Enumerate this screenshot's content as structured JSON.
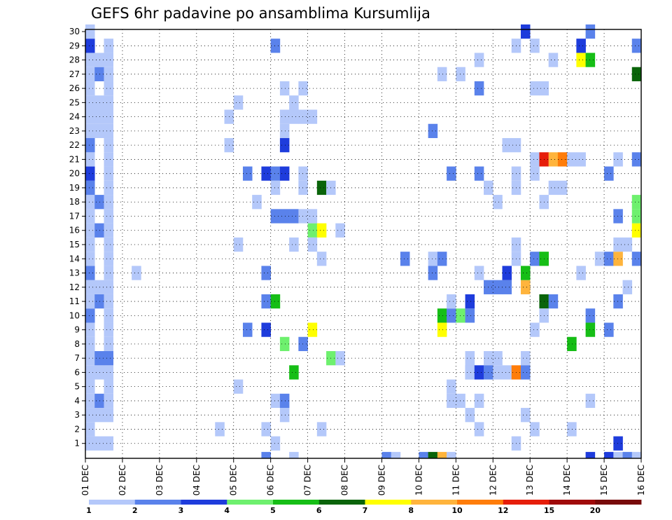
{
  "chart_data": {
    "type": "heatmap",
    "title": "GEFS 6hr padavine po ansamblima Kursumlija",
    "xlabel": "",
    "ylabel": "",
    "x_tick_labels": [
      "01 DEC",
      "02 DEC",
      "03 DEC",
      "04 DEC",
      "05 DEC",
      "06 DEC",
      "07 DEC",
      "08 DEC",
      "09 DEC",
      "10 DEC",
      "11 DEC",
      "12 DEC",
      "13 DEC",
      "14 DEC",
      "15 DEC",
      "16 DEC"
    ],
    "y_tick_labels": [
      "1",
      "2",
      "3",
      "4",
      "5",
      "6",
      "7",
      "8",
      "9",
      "10",
      "11",
      "12",
      "13",
      "14",
      "15",
      "16",
      "17",
      "18",
      "19",
      "20",
      "21",
      "22",
      "23",
      "24",
      "25",
      "26",
      "27",
      "28",
      "29",
      "30"
    ],
    "x_range": [
      0,
      60
    ],
    "y_range": [
      1,
      30
    ],
    "grid": true,
    "colorbar": {
      "tick_labels": [
        "1",
        "2",
        "3",
        "4",
        "5",
        "6",
        "7",
        "8",
        "10",
        "12",
        "15",
        "20"
      ],
      "colors": [
        "#b4c8fa",
        "#5a82eb",
        "#1e3cdc",
        "#6ef06e",
        "#16be16",
        "#0a640a",
        "#ffff00",
        "#ffb43c",
        "#ff7d0a",
        "#e61e0a",
        "#a00a0a",
        "#780a0a"
      ]
    },
    "cells": [
      [
        1,
        1,
        0
      ],
      [
        1,
        2,
        0
      ],
      [
        1,
        3,
        0
      ],
      [
        1,
        4,
        0
      ],
      [
        1,
        5,
        0
      ],
      [
        1,
        6,
        0
      ],
      [
        1,
        7,
        0
      ],
      [
        1,
        8,
        0
      ],
      [
        1,
        9,
        0
      ],
      [
        1,
        10,
        1
      ],
      [
        1,
        11,
        0
      ],
      [
        1,
        12,
        0
      ],
      [
        1,
        13,
        1
      ],
      [
        1,
        14,
        0
      ],
      [
        1,
        15,
        0
      ],
      [
        1,
        16,
        0
      ],
      [
        1,
        17,
        0
      ],
      [
        1,
        18,
        0
      ],
      [
        1,
        19,
        1
      ],
      [
        1,
        20,
        2
      ],
      [
        1,
        21,
        0
      ],
      [
        1,
        22,
        1
      ],
      [
        1,
        23,
        0
      ],
      [
        1,
        24,
        0
      ],
      [
        1,
        25,
        0
      ],
      [
        1,
        26,
        0
      ],
      [
        1,
        27,
        0
      ],
      [
        1,
        28,
        0
      ],
      [
        1,
        29,
        2
      ],
      [
        1,
        30,
        0
      ],
      [
        2,
        1,
        0
      ],
      [
        2,
        4,
        1
      ],
      [
        2,
        3,
        0
      ],
      [
        2,
        6,
        0
      ],
      [
        2,
        7,
        1
      ],
      [
        2,
        11,
        1
      ],
      [
        2,
        12,
        0
      ],
      [
        2,
        16,
        1
      ],
      [
        2,
        18,
        1
      ],
      [
        2,
        23,
        0
      ],
      [
        2,
        24,
        0
      ],
      [
        2,
        25,
        0
      ],
      [
        2,
        27,
        1
      ],
      [
        2,
        28,
        0
      ],
      [
        3,
        1,
        0
      ],
      [
        3,
        3,
        0
      ],
      [
        3,
        4,
        0
      ],
      [
        3,
        5,
        0
      ],
      [
        3,
        6,
        0
      ],
      [
        3,
        7,
        1
      ],
      [
        3,
        8,
        0
      ],
      [
        3,
        9,
        0
      ],
      [
        3,
        10,
        0
      ],
      [
        3,
        11,
        0
      ],
      [
        3,
        12,
        0
      ],
      [
        3,
        13,
        0
      ],
      [
        3,
        14,
        0
      ],
      [
        3,
        15,
        0
      ],
      [
        3,
        16,
        0
      ],
      [
        3,
        17,
        0
      ],
      [
        3,
        18,
        0
      ],
      [
        3,
        19,
        0
      ],
      [
        3,
        20,
        0
      ],
      [
        3,
        21,
        0
      ],
      [
        3,
        22,
        0
      ],
      [
        3,
        23,
        0
      ],
      [
        3,
        24,
        0
      ],
      [
        3,
        25,
        0
      ],
      [
        3,
        26,
        0
      ],
      [
        3,
        27,
        0
      ],
      [
        3,
        28,
        0
      ],
      [
        3,
        29,
        0
      ],
      [
        6,
        13,
        0
      ],
      [
        15,
        2,
        0
      ],
      [
        16,
        24,
        0
      ],
      [
        16,
        22,
        0
      ],
      [
        17,
        5,
        0
      ],
      [
        17,
        25,
        0
      ],
      [
        17,
        15,
        0
      ],
      [
        18,
        20,
        1
      ],
      [
        18,
        9,
        1
      ],
      [
        19,
        18,
        0
      ],
      [
        20,
        13,
        1
      ],
      [
        20,
        20,
        2
      ],
      [
        20,
        11,
        1
      ],
      [
        20,
        9,
        2
      ],
      [
        20,
        0,
        1
      ],
      [
        20,
        2,
        0
      ],
      [
        21,
        1,
        0
      ],
      [
        21,
        17,
        1
      ],
      [
        21,
        20,
        1
      ],
      [
        21,
        11,
        4
      ],
      [
        21,
        19,
        0
      ],
      [
        21,
        29,
        1
      ],
      [
        21,
        4,
        0
      ],
      [
        22,
        3,
        0
      ],
      [
        22,
        17,
        1
      ],
      [
        22,
        20,
        2
      ],
      [
        22,
        22,
        2
      ],
      [
        22,
        26,
        0
      ],
      [
        22,
        4,
        1
      ],
      [
        22,
        8,
        3
      ],
      [
        22,
        23,
        0
      ],
      [
        22,
        24,
        0
      ],
      [
        23,
        0,
        0
      ],
      [
        23,
        15,
        0
      ],
      [
        23,
        17,
        1
      ],
      [
        23,
        24,
        0
      ],
      [
        23,
        25,
        0
      ],
      [
        23,
        6,
        4
      ],
      [
        24,
        8,
        1
      ],
      [
        24,
        17,
        0
      ],
      [
        24,
        19,
        0
      ],
      [
        24,
        20,
        0
      ],
      [
        24,
        24,
        0
      ],
      [
        24,
        26,
        0
      ],
      [
        25,
        16,
        3
      ],
      [
        25,
        15,
        0
      ],
      [
        25,
        17,
        0
      ],
      [
        25,
        24,
        0
      ],
      [
        25,
        9,
        6
      ],
      [
        26,
        14,
        0
      ],
      [
        26,
        16,
        6
      ],
      [
        26,
        19,
        5
      ],
      [
        26,
        2,
        0
      ],
      [
        27,
        19,
        0
      ],
      [
        27,
        7,
        3
      ],
      [
        28,
        7,
        0
      ],
      [
        28,
        16,
        0
      ],
      [
        33,
        0,
        1
      ],
      [
        34,
        0,
        0
      ],
      [
        35,
        14,
        1
      ],
      [
        37,
        0,
        1
      ],
      [
        38,
        23,
        1
      ],
      [
        38,
        14,
        0
      ],
      [
        38,
        13,
        1
      ],
      [
        38,
        0,
        5
      ],
      [
        39,
        14,
        1
      ],
      [
        39,
        10,
        4
      ],
      [
        39,
        9,
        6
      ],
      [
        39,
        0,
        7
      ],
      [
        39,
        27,
        0
      ],
      [
        40,
        0,
        0
      ],
      [
        40,
        5,
        0
      ],
      [
        40,
        10,
        1
      ],
      [
        40,
        11,
        0
      ],
      [
        40,
        20,
        1
      ],
      [
        40,
        4,
        0
      ],
      [
        41,
        10,
        3
      ],
      [
        41,
        27,
        0
      ],
      [
        41,
        4,
        0
      ],
      [
        42,
        10,
        1
      ],
      [
        42,
        11,
        2
      ],
      [
        42,
        6,
        1
      ],
      [
        42,
        7,
        0
      ],
      [
        42,
        3,
        0
      ],
      [
        42,
        6,
        0
      ],
      [
        43,
        13,
        0
      ],
      [
        43,
        2,
        0
      ],
      [
        43,
        6,
        2
      ],
      [
        43,
        20,
        1
      ],
      [
        43,
        26,
        1
      ],
      [
        43,
        28,
        0
      ],
      [
        43,
        4,
        0
      ],
      [
        44,
        7,
        0
      ],
      [
        44,
        6,
        1
      ],
      [
        44,
        12,
        1
      ],
      [
        44,
        19,
        0
      ],
      [
        45,
        12,
        1
      ],
      [
        45,
        7,
        0
      ],
      [
        45,
        18,
        0
      ],
      [
        45,
        6,
        0
      ],
      [
        46,
        6,
        0
      ],
      [
        46,
        12,
        1
      ],
      [
        46,
        22,
        0
      ],
      [
        46,
        13,
        2
      ],
      [
        47,
        6,
        8
      ],
      [
        47,
        15,
        0
      ],
      [
        47,
        14,
        0
      ],
      [
        47,
        19,
        0
      ],
      [
        47,
        20,
        0
      ],
      [
        47,
        22,
        0
      ],
      [
        47,
        29,
        0
      ],
      [
        47,
        1,
        0
      ],
      [
        48,
        12,
        7
      ],
      [
        48,
        13,
        4
      ],
      [
        48,
        30,
        2
      ],
      [
        48,
        7,
        0
      ],
      [
        48,
        3,
        0
      ],
      [
        48,
        6,
        1
      ],
      [
        49,
        14,
        1
      ],
      [
        49,
        2,
        0
      ],
      [
        49,
        9,
        0
      ],
      [
        49,
        20,
        0
      ],
      [
        49,
        21,
        0
      ],
      [
        49,
        29,
        0
      ],
      [
        49,
        26,
        0
      ],
      [
        50,
        21,
        9
      ],
      [
        50,
        11,
        5
      ],
      [
        50,
        14,
        4
      ],
      [
        50,
        10,
        0
      ],
      [
        50,
        18,
        0
      ],
      [
        50,
        26,
        0
      ],
      [
        51,
        11,
        1
      ],
      [
        51,
        21,
        7
      ],
      [
        51,
        19,
        0
      ],
      [
        51,
        28,
        0
      ],
      [
        52,
        21,
        8
      ],
      [
        52,
        19,
        0
      ],
      [
        53,
        21,
        0
      ],
      [
        53,
        2,
        0
      ],
      [
        53,
        8,
        4
      ],
      [
        54,
        13,
        0
      ],
      [
        54,
        21,
        0
      ],
      [
        54,
        28,
        6
      ],
      [
        54,
        29,
        2
      ],
      [
        55,
        4,
        0
      ],
      [
        55,
        10,
        1
      ],
      [
        55,
        0,
        2
      ],
      [
        55,
        9,
        4
      ],
      [
        55,
        28,
        4
      ],
      [
        55,
        30,
        1
      ],
      [
        56,
        14,
        0
      ],
      [
        57,
        0,
        2
      ],
      [
        57,
        14,
        1
      ],
      [
        57,
        9,
        1
      ],
      [
        57,
        20,
        1
      ],
      [
        58,
        0,
        0
      ],
      [
        58,
        14,
        7
      ],
      [
        58,
        21,
        0
      ],
      [
        58,
        1,
        2
      ],
      [
        58,
        11,
        1
      ],
      [
        58,
        15,
        0
      ],
      [
        58,
        17,
        1
      ],
      [
        59,
        0,
        1
      ],
      [
        59,
        12,
        0
      ],
      [
        59,
        15,
        0
      ],
      [
        60,
        16,
        6
      ],
      [
        60,
        17,
        3
      ],
      [
        60,
        18,
        3
      ],
      [
        60,
        14,
        1
      ],
      [
        60,
        27,
        5
      ],
      [
        60,
        21,
        1
      ],
      [
        60,
        29,
        1
      ],
      [
        60,
        0,
        0
      ]
    ]
  }
}
